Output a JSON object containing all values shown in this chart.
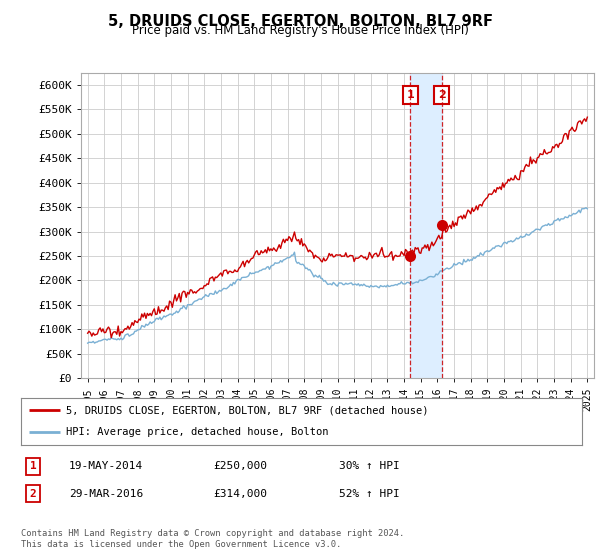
{
  "title": "5, DRUIDS CLOSE, EGERTON, BOLTON, BL7 9RF",
  "subtitle": "Price paid vs. HM Land Registry's House Price Index (HPI)",
  "ylabel_ticks": [
    "£0",
    "£50K",
    "£100K",
    "£150K",
    "£200K",
    "£250K",
    "£300K",
    "£350K",
    "£400K",
    "£450K",
    "£500K",
    "£550K",
    "£600K"
  ],
  "ytick_vals": [
    0,
    50000,
    100000,
    150000,
    200000,
    250000,
    300000,
    350000,
    400000,
    450000,
    500000,
    550000,
    600000
  ],
  "ylim": [
    0,
    625000
  ],
  "xlim_start": 1994.6,
  "xlim_end": 2025.4,
  "line1_color": "#cc0000",
  "line2_color": "#7ab0d4",
  "shade_color": "#ddeeff",
  "annotation1_date": 2014.37,
  "annotation1_value": 250000,
  "annotation1_label": "1",
  "annotation2_date": 2016.25,
  "annotation2_value": 314000,
  "annotation2_label": "2",
  "legend_line1": "5, DRUIDS CLOSE, EGERTON, BOLTON, BL7 9RF (detached house)",
  "legend_line2": "HPI: Average price, detached house, Bolton",
  "table_rows": [
    [
      "1",
      "19-MAY-2014",
      "£250,000",
      "30% ↑ HPI"
    ],
    [
      "2",
      "29-MAR-2016",
      "£314,000",
      "52% ↑ HPI"
    ]
  ],
  "footer": "Contains HM Land Registry data © Crown copyright and database right 2024.\nThis data is licensed under the Open Government Licence v3.0.",
  "background_color": "#ffffff",
  "grid_color": "#cccccc"
}
